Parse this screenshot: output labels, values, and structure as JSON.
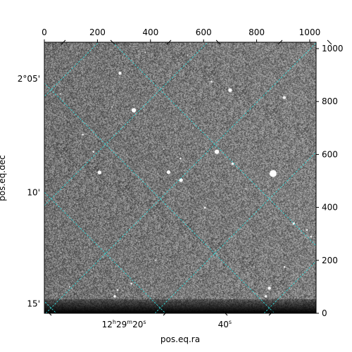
{
  "chart_data": {
    "type": "heatmap",
    "description_kind": "astronomical-image-with-wcs-grid",
    "xlabel": "pos.eq.ra",
    "ylabel": "pos.eq.dec",
    "pixel_axes": {
      "x_ticks": [
        0,
        200,
        400,
        600,
        800,
        1000
      ],
      "y_ticks": [
        0,
        200,
        400,
        600,
        800,
        1000
      ],
      "xlim": [
        0,
        1024
      ],
      "ylim": [
        0,
        1024
      ]
    },
    "world_axes": {
      "ra_ticks": [
        {
          "x": 300,
          "main": "12",
          "h": "h",
          "m_val": "29",
          "m": "m",
          "s_val": "20",
          "s": "s"
        },
        {
          "x": 680,
          "main": "40",
          "s": "s"
        }
      ],
      "dec_ticks": [
        {
          "y": 886,
          "label": "2°05'"
        },
        {
          "y": 456,
          "label": "10'"
        },
        {
          "y": 36,
          "label": "15'"
        }
      ]
    },
    "grid_color": "#33d6d6",
    "image_colormap": "gray",
    "image_noise_mean": 0.45,
    "bright_sources": [
      {
        "x": 862,
        "y": 528,
        "r": 11,
        "b": 1.0
      },
      {
        "x": 337,
        "y": 767,
        "r": 7,
        "b": 0.95
      },
      {
        "x": 700,
        "y": 843,
        "r": 6,
        "b": 0.95
      },
      {
        "x": 650,
        "y": 610,
        "r": 7,
        "b": 0.9
      },
      {
        "x": 208,
        "y": 532,
        "r": 6,
        "b": 0.9
      },
      {
        "x": 468,
        "y": 533,
        "r": 6,
        "b": 0.9
      },
      {
        "x": 515,
        "y": 503,
        "r": 6,
        "b": 0.9
      },
      {
        "x": 285,
        "y": 907,
        "r": 5,
        "b": 0.85
      },
      {
        "x": 904,
        "y": 815,
        "r": 5,
        "b": 0.8
      },
      {
        "x": 940,
        "y": 339,
        "r": 4,
        "b": 0.8
      },
      {
        "x": 848,
        "y": 95,
        "r": 5,
        "b": 0.9
      },
      {
        "x": 835,
        "y": 64,
        "r": 4,
        "b": 0.8
      },
      {
        "x": 265,
        "y": 64,
        "r": 4,
        "b": 0.85
      },
      {
        "x": 605,
        "y": 399,
        "r": 3,
        "b": 0.8
      },
      {
        "x": 710,
        "y": 565,
        "r": 4,
        "b": 0.8
      },
      {
        "x": 513,
        "y": 585,
        "r": 3,
        "b": 0.75
      },
      {
        "x": 276,
        "y": 88,
        "r": 3,
        "b": 0.75
      },
      {
        "x": 328,
        "y": 112,
        "r": 3,
        "b": 0.7
      },
      {
        "x": 990,
        "y": 315,
        "r": 3,
        "b": 0.7
      },
      {
        "x": 905,
        "y": 175,
        "r": 3,
        "b": 0.7
      },
      {
        "x": 1005,
        "y": 290,
        "r": 3,
        "b": 0.65
      },
      {
        "x": 145,
        "y": 675,
        "r": 3,
        "b": 0.65
      },
      {
        "x": 185,
        "y": 610,
        "r": 3,
        "b": 0.65
      },
      {
        "x": 630,
        "y": 875,
        "r": 3,
        "b": 0.65
      },
      {
        "x": 255,
        "y": 780,
        "r": 2,
        "b": 0.6
      },
      {
        "x": 540,
        "y": 975,
        "r": 2,
        "b": 0.6
      },
      {
        "x": 790,
        "y": 175,
        "r": 2,
        "b": 0.6
      },
      {
        "x": 420,
        "y": 200,
        "r": 2,
        "b": 0.55
      },
      {
        "x": 95,
        "y": 100,
        "r": 2,
        "b": 0.55
      },
      {
        "x": 380,
        "y": 985,
        "r": 2,
        "b": 0.55
      },
      {
        "x": 760,
        "y": 470,
        "r": 2,
        "b": 0.55
      },
      {
        "x": 560,
        "y": 700,
        "r": 2,
        "b": 0.5
      },
      {
        "x": 60,
        "y": 830,
        "r": 2,
        "b": 0.5
      },
      {
        "x": 450,
        "y": 620,
        "r": 2,
        "b": 0.5
      }
    ]
  }
}
